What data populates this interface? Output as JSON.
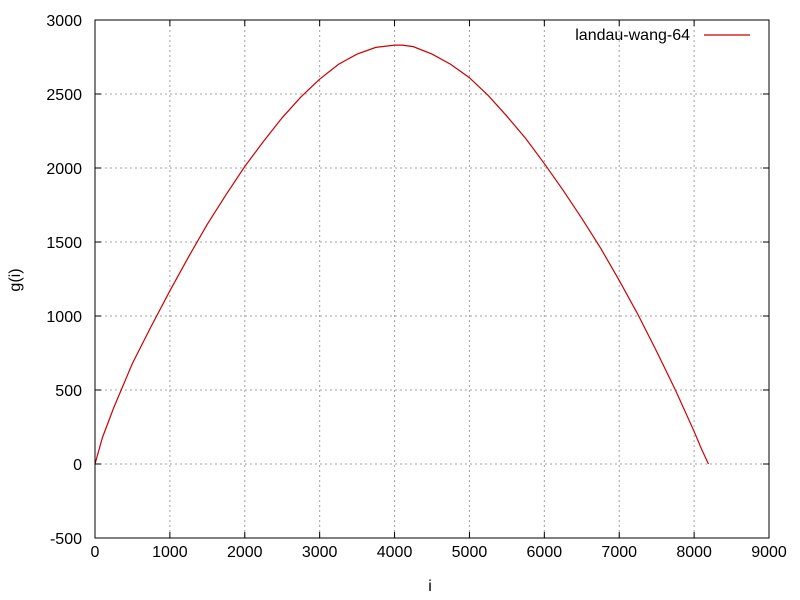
{
  "chart_data": {
    "type": "line",
    "xlabel": "i",
    "ylabel": "g(i)",
    "xlim": [
      0,
      9000
    ],
    "ylim": [
      -500,
      3000
    ],
    "x_ticks": [
      0,
      1000,
      2000,
      3000,
      4000,
      5000,
      6000,
      7000,
      8000,
      9000
    ],
    "y_ticks": [
      -500,
      0,
      500,
      1000,
      1500,
      2000,
      2500,
      3000
    ],
    "grid": true,
    "legend_position": "top-right",
    "series": [
      {
        "name": "landau-wang-64",
        "color": "#cc0000",
        "x": [
          0,
          100,
          250,
          500,
          750,
          1000,
          1250,
          1500,
          1750,
          2000,
          2250,
          2500,
          2750,
          3000,
          3250,
          3500,
          3750,
          4000,
          4100,
          4250,
          4500,
          4750,
          5000,
          5250,
          5500,
          5750,
          6000,
          6250,
          6500,
          6750,
          7000,
          7250,
          7500,
          7750,
          8000,
          8100,
          8192
        ],
        "y": [
          0,
          180,
          380,
          680,
          930,
          1170,
          1400,
          1620,
          1820,
          2010,
          2180,
          2340,
          2480,
          2600,
          2700,
          2770,
          2815,
          2830,
          2830,
          2820,
          2770,
          2700,
          2610,
          2490,
          2350,
          2200,
          2030,
          1850,
          1660,
          1460,
          1240,
          1010,
          760,
          500,
          220,
          100,
          0
        ]
      }
    ]
  }
}
